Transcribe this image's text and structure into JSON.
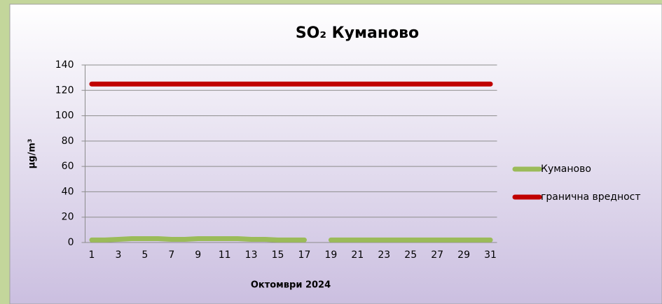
{
  "chart_data": {
    "type": "line",
    "title": "SO₂ Куманово",
    "x_label": "Октомври 2024",
    "y_label": "µg/m³",
    "categories": [
      "1",
      null,
      "3",
      null,
      "5",
      null,
      "7",
      null,
      "9",
      null,
      "11",
      null,
      "13",
      null,
      "15",
      null,
      "17",
      null,
      "19",
      null,
      "21",
      null,
      "23",
      null,
      "25",
      null,
      "27",
      null,
      "29",
      null,
      "31"
    ],
    "series": [
      {
        "name": "Куманово",
        "color": "#9bbb59",
        "values": [
          2,
          2,
          2.5,
          3,
          3,
          3,
          2.5,
          2.5,
          3,
          3,
          3,
          3,
          2.5,
          2.5,
          2,
          2,
          2,
          null,
          2,
          2,
          2,
          2,
          2,
          2,
          2,
          2,
          2,
          2,
          2,
          2,
          2
        ]
      },
      {
        "name": "гранична вредност",
        "color": "#c00000",
        "values": [
          125,
          125,
          125,
          125,
          125,
          125,
          125,
          125,
          125,
          125,
          125,
          125,
          125,
          125,
          125,
          125,
          125,
          125,
          125,
          125,
          125,
          125,
          125,
          125,
          125,
          125,
          125,
          125,
          125,
          125,
          125
        ]
      }
    ],
    "ylim": [
      0,
      140
    ],
    "yticks": [
      0,
      20,
      40,
      60,
      80,
      100,
      120,
      140
    ],
    "grid": true,
    "legend": "right"
  }
}
